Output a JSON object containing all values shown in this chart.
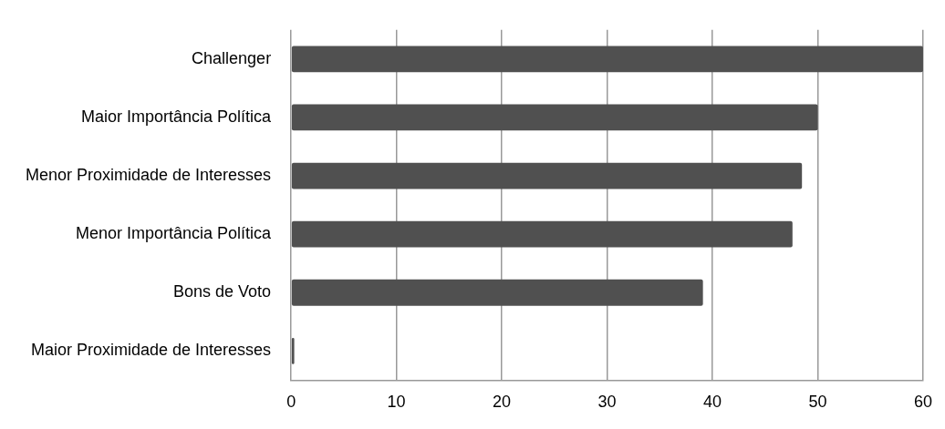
{
  "chart_data": {
    "type": "bar",
    "orientation": "horizontal",
    "categories": [
      "Challenger",
      "Maior Importância Política",
      "Menor Proximidade de Interesses",
      "Menor Importância Política",
      "Bons de Voto",
      "Maior Proximidade de Interesses"
    ],
    "values": [
      60,
      50,
      48.5,
      47.6,
      39.1,
      0.3
    ],
    "color": "#505050",
    "xlim": [
      0,
      60
    ],
    "xticks": [
      0,
      10,
      20,
      30,
      40,
      50,
      60
    ],
    "grid": "x",
    "legend": false
  }
}
